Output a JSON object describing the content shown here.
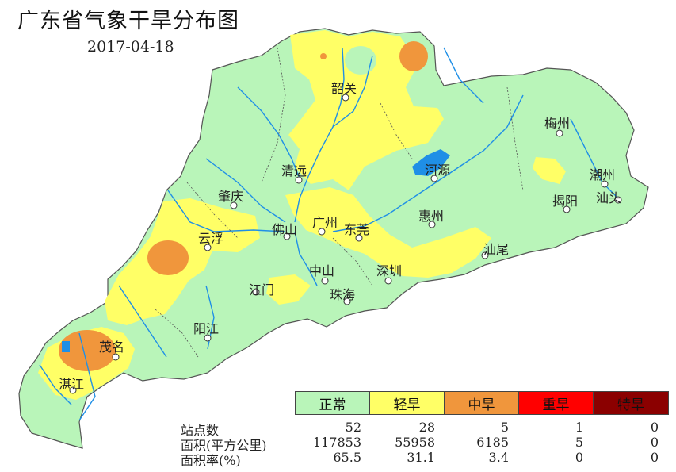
{
  "title": "广东省气象干旱分布图",
  "date": "2017-04-18",
  "cities": [
    {
      "name": "韶关",
      "icon": "city-dot-icon"
    },
    {
      "name": "梅州",
      "icon": "city-dot-icon"
    },
    {
      "name": "清远",
      "icon": "city-dot-icon"
    },
    {
      "name": "河源",
      "icon": "city-dot-icon"
    },
    {
      "name": "潮州",
      "icon": "city-dot-icon"
    },
    {
      "name": "肇庆",
      "icon": "city-dot-icon"
    },
    {
      "name": "揭阳",
      "icon": "city-dot-icon"
    },
    {
      "name": "汕头",
      "icon": "city-dot-icon"
    },
    {
      "name": "广州",
      "icon": "city-dot-icon"
    },
    {
      "name": "惠州",
      "icon": "city-dot-icon"
    },
    {
      "name": "云浮",
      "icon": "city-dot-icon"
    },
    {
      "name": "佛山",
      "icon": "city-dot-icon"
    },
    {
      "name": "东莞",
      "icon": "city-dot-icon"
    },
    {
      "name": "汕尾",
      "icon": "city-dot-icon"
    },
    {
      "name": "中山",
      "icon": "city-dot-icon"
    },
    {
      "name": "深圳",
      "icon": "city-dot-icon"
    },
    {
      "name": "江门",
      "icon": "city-dot-icon"
    },
    {
      "name": "珠海",
      "icon": "city-dot-icon"
    },
    {
      "name": "阳江",
      "icon": "city-dot-icon"
    },
    {
      "name": "茂名",
      "icon": "city-dot-icon"
    },
    {
      "name": "湛江",
      "icon": "city-dot-icon"
    }
  ],
  "legend": [
    {
      "label": "正常",
      "color": "#b9f5b9"
    },
    {
      "label": "轻旱",
      "color": "#ffff66"
    },
    {
      "label": "中旱",
      "color": "#f0963c"
    },
    {
      "label": "重旱",
      "color": "#ff0000"
    },
    {
      "label": "特旱",
      "color": "#8b0000"
    }
  ],
  "stats": {
    "rows": [
      {
        "label": "站点数",
        "values": [
          "52",
          "28",
          "5",
          "1",
          "0"
        ]
      },
      {
        "label": "面积(平方公里)",
        "values": [
          "117853",
          "55958",
          "6185",
          "5",
          "0"
        ]
      },
      {
        "label": "面积率(%)",
        "values": [
          "65.5",
          "31.1",
          "3.4",
          "0",
          "0"
        ]
      }
    ]
  },
  "colors": {
    "normal": "#b9f5b9",
    "light": "#ffff66",
    "moderate": "#f0963c",
    "river": "#1f8fe6",
    "sea": "#ffffff",
    "boundary": "#444444"
  }
}
